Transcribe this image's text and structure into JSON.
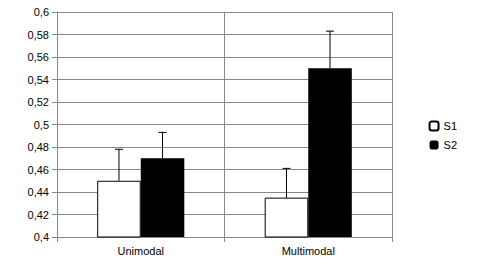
{
  "chart_data": {
    "type": "bar",
    "categories": [
      "Unimodal",
      "Multimodal"
    ],
    "series": [
      {
        "name": "S1",
        "color": "#ffffff",
        "values": [
          0.45,
          0.435
        ],
        "errors": [
          0.028,
          0.026
        ]
      },
      {
        "name": "S2",
        "color": "#000000",
        "values": [
          0.47,
          0.55
        ],
        "errors": [
          0.023,
          0.033
        ]
      }
    ],
    "ylim": [
      0.4,
      0.6
    ],
    "yticks": [
      {
        "value": 0.4,
        "label": "0,4"
      },
      {
        "value": 0.42,
        "label": "0,42"
      },
      {
        "value": 0.44,
        "label": "0,44"
      },
      {
        "value": 0.46,
        "label": "0,46"
      },
      {
        "value": 0.48,
        "label": "0,48"
      },
      {
        "value": 0.5,
        "label": "0,5"
      },
      {
        "value": 0.52,
        "label": "0,52"
      },
      {
        "value": 0.54,
        "label": "0,54"
      },
      {
        "value": 0.56,
        "label": "0,56"
      },
      {
        "value": 0.58,
        "label": "0,58"
      },
      {
        "value": 0.6,
        "label": "0,6"
      }
    ],
    "grid": true,
    "legend": "right"
  }
}
